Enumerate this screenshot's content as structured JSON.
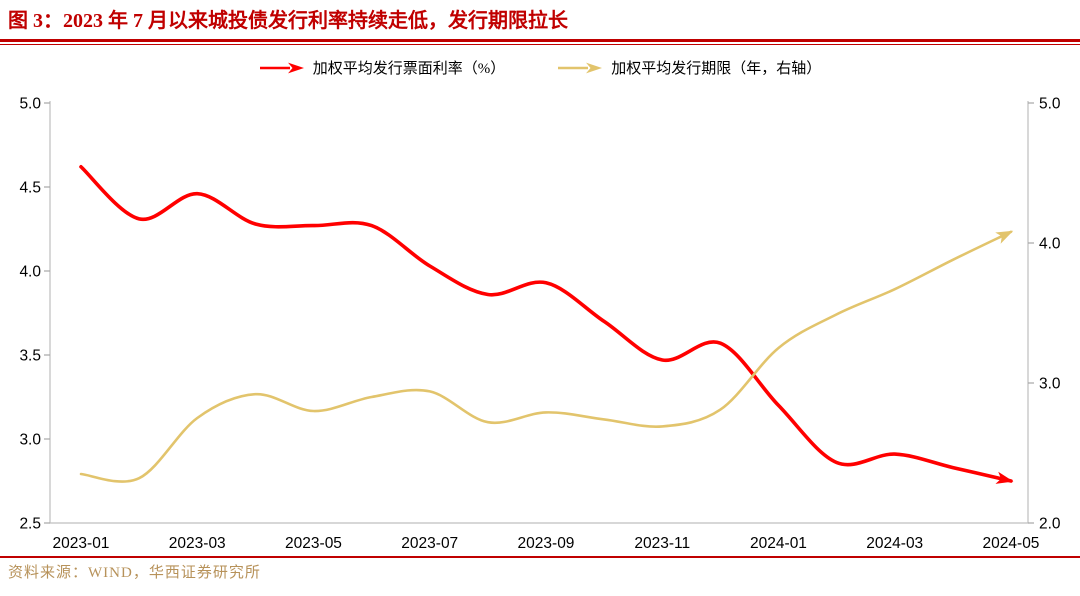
{
  "figure": {
    "title": "图 3：2023 年 7 月以来城投债发行利率持续走低，发行期限拉长",
    "source": "资料来源：WIND，华西证券研究所"
  },
  "legend": {
    "items": [
      {
        "label": "加权平均发行票面利率（%）",
        "color": "#ff0000"
      },
      {
        "label": "加权平均发行期限（年，右轴）",
        "color": "#e2c46c"
      }
    ]
  },
  "colors": {
    "title_red": "#c00000",
    "rate_line": "#ff0000",
    "term_line": "#e2c46c",
    "source_text": "#b7925a",
    "axis_line": "#bfbfbf",
    "tick_mark": "#a6a6a6",
    "label_text": "#000000"
  },
  "chart_data": {
    "type": "line",
    "line_style": "smooth",
    "arrow_ends": true,
    "grid": false,
    "legend_position": "top",
    "x": [
      "2023-01",
      "2023-02",
      "2023-03",
      "2023-04",
      "2023-05",
      "2023-06",
      "2023-07",
      "2023-08",
      "2023-09",
      "2023-10",
      "2023-11",
      "2023-12",
      "2024-01",
      "2024-02",
      "2024-03",
      "2024-04",
      "2024-05"
    ],
    "x_tick_labels": [
      "2023-01",
      "2023-03",
      "2023-05",
      "2023-07",
      "2023-09",
      "2023-11",
      "2024-01",
      "2024-03",
      "2024-05"
    ],
    "series": [
      {
        "name": "加权平均发行票面利率（%）",
        "axis": "left",
        "color": "#ff0000",
        "stroke_width": 3.6,
        "values": [
          4.62,
          4.31,
          4.46,
          4.28,
          4.27,
          4.27,
          4.03,
          3.86,
          3.93,
          3.7,
          3.47,
          3.57,
          3.2,
          2.86,
          2.91,
          2.83,
          2.75
        ]
      },
      {
        "name": "加权平均发行期限（年，右轴）",
        "axis": "right",
        "color": "#e2c46c",
        "stroke_width": 2.6,
        "values": [
          2.35,
          2.32,
          2.75,
          2.92,
          2.8,
          2.9,
          2.94,
          2.72,
          2.79,
          2.74,
          2.69,
          2.81,
          3.25,
          3.49,
          3.67,
          3.88,
          4.08
        ]
      }
    ],
    "left_axis": {
      "min": 2.5,
      "max": 5.0,
      "ticks": [
        2.5,
        3.0,
        3.5,
        4.0,
        4.5,
        5.0
      ],
      "tick_format": "0.1f"
    },
    "right_axis": {
      "min": 2.0,
      "max": 5.0,
      "ticks": [
        2.0,
        3.0,
        4.0,
        5.0
      ],
      "tick_format": "0.1f"
    }
  }
}
